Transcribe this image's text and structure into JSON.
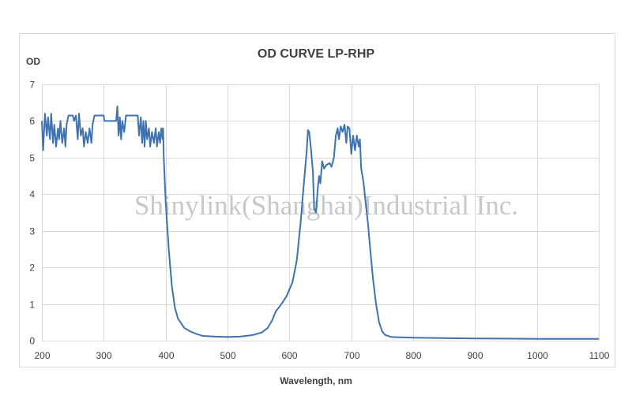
{
  "chart_data": {
    "type": "line",
    "title": "OD CURVE LP-RHP",
    "xlabel": "Wavelength, nm",
    "ylabel": "OD",
    "xlim": [
      200,
      1100
    ],
    "ylim": [
      0,
      7
    ],
    "xticks": [
      200,
      300,
      400,
      500,
      600,
      700,
      800,
      900,
      1000,
      1100
    ],
    "yticks": [
      0,
      1,
      2,
      3,
      4,
      5,
      6,
      7
    ],
    "grid": true,
    "legend": "none",
    "annotation": "Shinylink(Shanghai)Industrial Inc.",
    "series": [
      {
        "name": "OD",
        "color": "#3f72b0",
        "x": [
          200,
          202,
          205,
          208,
          210,
          213,
          215,
          218,
          220,
          223,
          226,
          228,
          230,
          233,
          236,
          238,
          240,
          243,
          250,
          252,
          255,
          258,
          260,
          263,
          266,
          268,
          271,
          274,
          277,
          280,
          282,
          285,
          300,
          301,
          320,
          322,
          324,
          326,
          328,
          330,
          333,
          336,
          355,
          357,
          360,
          362,
          364,
          366,
          368,
          370,
          373,
          375,
          378,
          381,
          384,
          386,
          389,
          391,
          393,
          395,
          396,
          397,
          398,
          400,
          405,
          410,
          415,
          420,
          430,
          440,
          450,
          460,
          480,
          500,
          520,
          540,
          555,
          565,
          572,
          578,
          585,
          595,
          605,
          612,
          618,
          623,
          628,
          630,
          632,
          635,
          638,
          640,
          643,
          646,
          648,
          650,
          653,
          656,
          660,
          665,
          668,
          672,
          675,
          678,
          680,
          683,
          686,
          689,
          692,
          694,
          697,
          700,
          703,
          706,
          709,
          712,
          714,
          716,
          718,
          720,
          723,
          727,
          730,
          735,
          740,
          745,
          750,
          755,
          765,
          800,
          900,
          1000,
          1100
        ],
        "y": [
          6.0,
          5.2,
          6.2,
          5.6,
          6.1,
          5.5,
          6.2,
          5.4,
          5.9,
          5.3,
          5.8,
          5.5,
          6.0,
          5.4,
          5.8,
          5.3,
          5.9,
          6.15,
          6.15,
          6.0,
          6.15,
          5.5,
          6.2,
          5.6,
          5.8,
          5.3,
          5.7,
          5.4,
          5.8,
          5.4,
          5.9,
          6.15,
          6.15,
          6.0,
          6.0,
          6.4,
          5.6,
          6.1,
          5.5,
          6.0,
          5.7,
          6.15,
          6.15,
          5.6,
          6.1,
          5.4,
          6.0,
          5.3,
          6.0,
          5.5,
          5.8,
          5.3,
          5.7,
          5.4,
          5.8,
          5.3,
          5.7,
          5.4,
          5.8,
          5.5,
          5.8,
          5.0,
          4.6,
          3.8,
          2.5,
          1.5,
          0.9,
          0.6,
          0.35,
          0.25,
          0.18,
          0.13,
          0.11,
          0.1,
          0.11,
          0.15,
          0.22,
          0.35,
          0.55,
          0.8,
          0.95,
          1.2,
          1.6,
          2.2,
          3.2,
          4.2,
          5.2,
          5.75,
          5.7,
          5.2,
          4.6,
          3.6,
          3.5,
          4.2,
          4.5,
          4.3,
          4.9,
          4.7,
          4.8,
          4.85,
          4.75,
          5.0,
          5.6,
          5.8,
          5.5,
          5.85,
          5.7,
          5.9,
          5.4,
          5.85,
          5.8,
          5.1,
          5.6,
          5.2,
          5.6,
          5.3,
          5.5,
          4.7,
          4.5,
          4.3,
          3.8,
          3.2,
          2.6,
          1.7,
          1.0,
          0.5,
          0.25,
          0.15,
          0.1,
          0.08,
          0.06,
          0.05,
          0.05
        ]
      }
    ]
  }
}
